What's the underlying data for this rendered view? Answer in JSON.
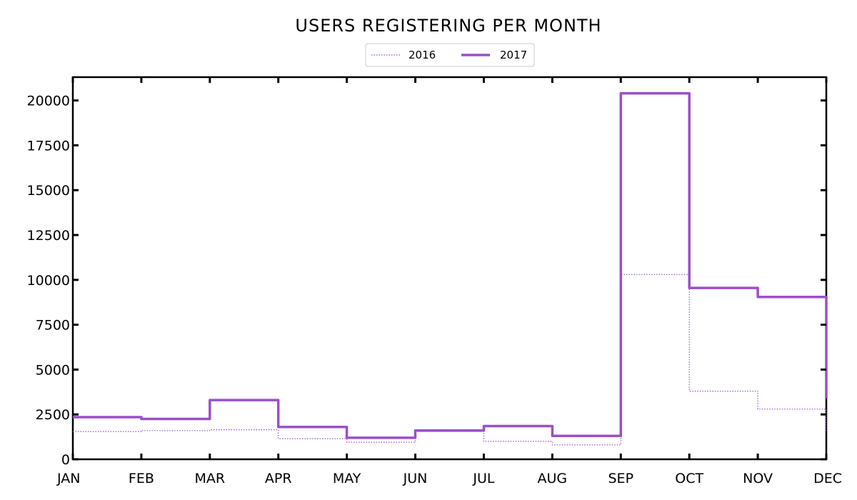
{
  "chart_data": {
    "type": "line",
    "step": "post",
    "title": "USERS REGISTERING PER MONTH",
    "xlabel": "",
    "ylabel": "",
    "categories": [
      "JAN",
      "FEB",
      "MAR",
      "APR",
      "MAY",
      "JUN",
      "JUL",
      "AUG",
      "SEP",
      "OCT",
      "NOV",
      "DEC"
    ],
    "yticks": [
      0,
      2500,
      5000,
      7500,
      10000,
      12500,
      15000,
      17500,
      20000
    ],
    "ylim": [
      0,
      21300
    ],
    "grid": false,
    "legend": "top-center",
    "series": [
      {
        "name": "2016",
        "style": "dotted",
        "color": "#9b4fc8",
        "values": [
          1550,
          1600,
          1650,
          1150,
          950,
          1550,
          1000,
          800,
          10300,
          3800,
          2800,
          1500
        ]
      },
      {
        "name": "2017",
        "style": "solid",
        "color": "#9b4fc8",
        "values": [
          2350,
          2250,
          3300,
          1800,
          1200,
          1600,
          1850,
          1300,
          20400,
          9550,
          9050,
          3400
        ]
      }
    ]
  }
}
